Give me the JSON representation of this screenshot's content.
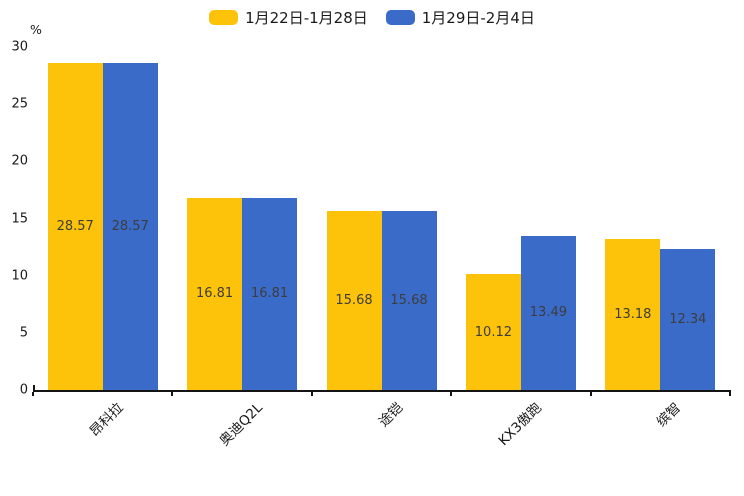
{
  "chart_data": {
    "type": "bar",
    "title": "",
    "ylabel": "%",
    "categories": [
      "昂科拉",
      "奥迪Q2L",
      "途铠",
      "KX3傲跑",
      "缤智"
    ],
    "series": [
      {
        "name": "1月22日-1月28日",
        "color": "#fcc30a",
        "values": [
          28.57,
          16.81,
          15.68,
          10.12,
          13.18
        ]
      },
      {
        "name": "1月29日-2月4日",
        "color": "#3a6bc9",
        "values": [
          28.57,
          16.81,
          15.68,
          13.49,
          12.34
        ]
      }
    ],
    "ylim": [
      0,
      30
    ],
    "y_ticks": [
      0,
      5,
      10,
      15,
      20,
      25,
      30
    ],
    "grid": false,
    "legend_position": "top-center",
    "value_labels": "inside-center",
    "value_label_decimals": 2,
    "colors": {
      "axis": "#141414",
      "tick_label": "#1a1a1a",
      "value_label": "#3d3d3d",
      "background": "#ffffff"
    }
  }
}
